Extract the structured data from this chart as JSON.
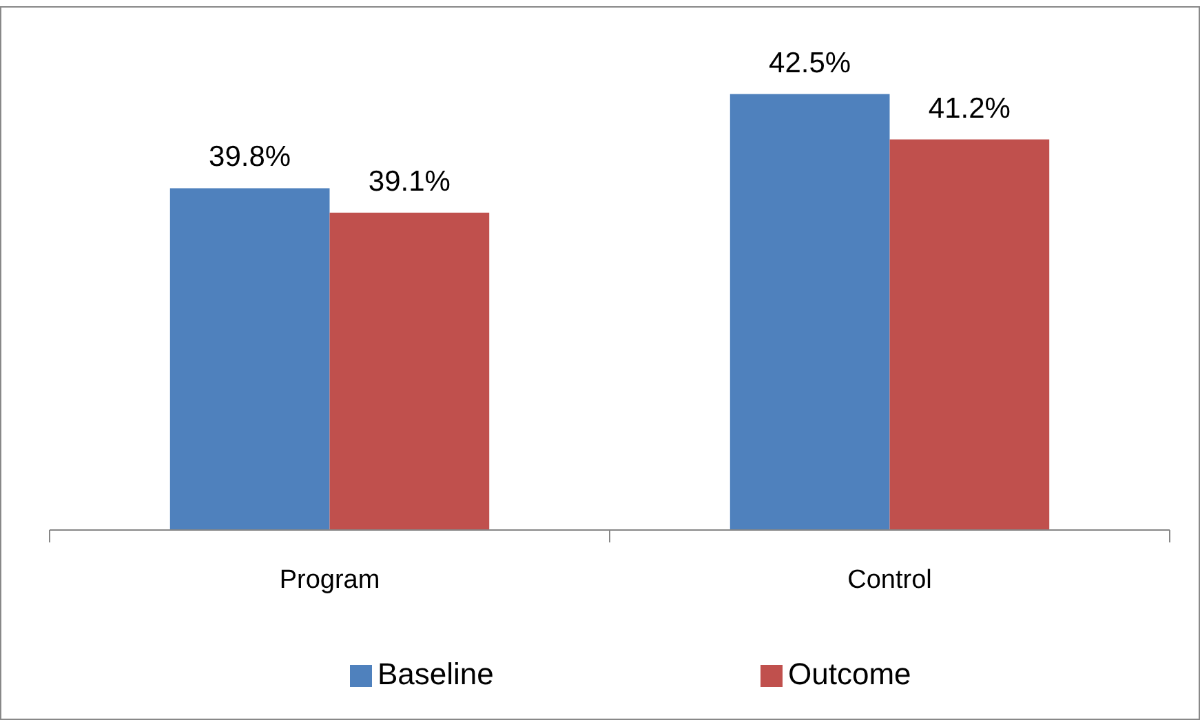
{
  "chart_data": {
    "type": "bar",
    "categories": [
      "Program",
      "Control"
    ],
    "series": [
      {
        "name": "Baseline",
        "color": "#4f81bd",
        "values": [
          39.8,
          42.5
        ],
        "value_labels": [
          "39.8%",
          "42.5%"
        ]
      },
      {
        "name": "Outcome",
        "color": "#c0504d",
        "values": [
          39.1,
          41.2
        ],
        "value_labels": [
          "39.1%",
          "41.2%"
        ]
      }
    ],
    "ylim": [
      30,
      45
    ],
    "tick_labels": "x",
    "legend": "bottom"
  }
}
